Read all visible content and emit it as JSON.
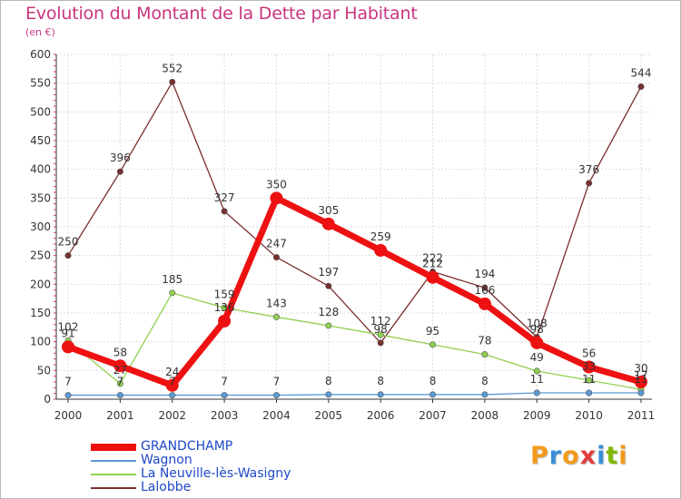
{
  "title": "Evolution du Montant de la Dette par Habitant",
  "subtitle": "(en €)",
  "logo_text": "Proxiti",
  "logo_colors": [
    "#f39a1a",
    "#3a8fd9",
    "#f39a1a",
    "#e23c3c",
    "#3a8fd9",
    "#7fb800",
    "#f39a1a"
  ],
  "colors": {
    "title": "#c8357e",
    "grid": "#dddddd",
    "axis_text": "#333333",
    "minor_tick": "#c8357e"
  },
  "chart_data": {
    "type": "line",
    "title": "Evolution du Montant de la Dette par Habitant",
    "ylabel": "(en €)",
    "xlabel": "",
    "x": [
      "2000",
      "2001",
      "2002",
      "2003",
      "2004",
      "2005",
      "2006",
      "2007",
      "2008",
      "2009",
      "2010",
      "2011"
    ],
    "ylim": [
      0,
      600
    ],
    "yticks": [
      0,
      50,
      100,
      150,
      200,
      250,
      300,
      350,
      400,
      450,
      500,
      550,
      600
    ],
    "grid": true,
    "legend_position": "bottom-left",
    "series": [
      {
        "name": "GRANDCHAMP",
        "color": "#ee1111",
        "values": [
          91,
          58,
          24,
          136,
          350,
          305,
          259,
          212,
          166,
          98,
          56,
          30
        ],
        "labels": [
          "91",
          "58",
          "24",
          "136",
          "350",
          "305",
          "259",
          "212",
          "166",
          "98",
          "56",
          "30"
        ]
      },
      {
        "name": "Wagnon",
        "color": "#5b9bd5",
        "values": [
          7,
          7,
          7,
          7,
          7,
          8,
          8,
          8,
          8,
          11,
          11,
          11
        ],
        "labels": [
          "7",
          "7",
          "7",
          "7",
          "7",
          "8",
          "8",
          "8",
          "8",
          "11",
          "11",
          "11"
        ]
      },
      {
        "name": "La Neuville-lès-Wasigny",
        "color": "#90d050",
        "values": [
          102,
          27,
          185,
          159,
          143,
          128,
          112,
          95,
          78,
          49,
          33,
          17
        ],
        "labels": [
          "102",
          "27",
          "185",
          "159",
          "143",
          "128",
          "112",
          "95",
          "78",
          "49",
          "33",
          "17"
        ]
      },
      {
        "name": "Lalobbe",
        "color": "#7a2e2e",
        "values": [
          250,
          396,
          552,
          327,
          247,
          197,
          98,
          222,
          194,
          108,
          376,
          544
        ],
        "labels": [
          "250",
          "396",
          "552",
          "327",
          "247",
          "197",
          "98",
          "222",
          "194",
          "108",
          "376",
          "544"
        ]
      }
    ]
  }
}
